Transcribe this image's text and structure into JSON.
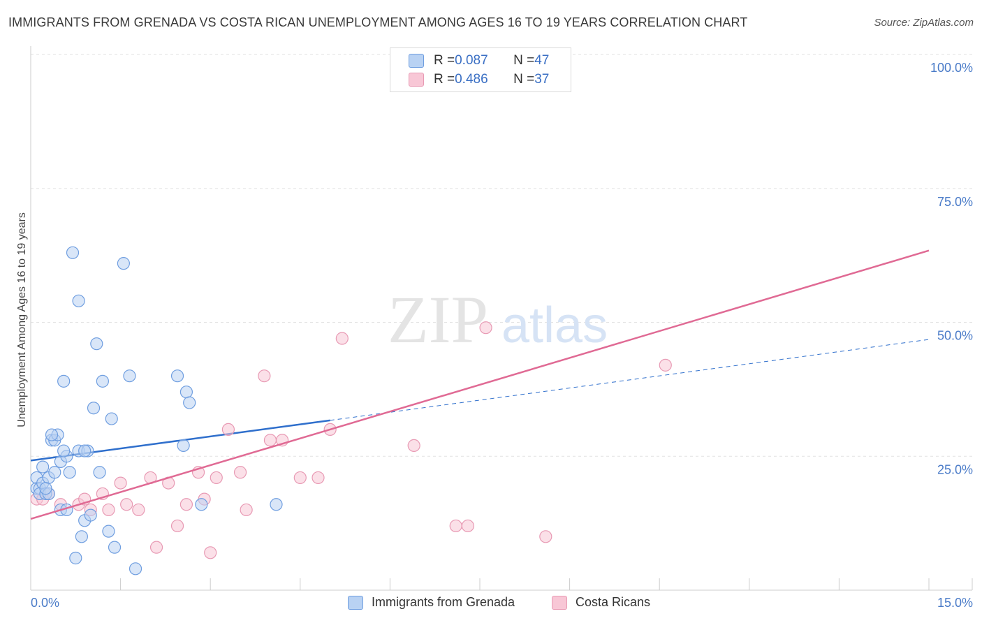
{
  "header": {
    "title": "IMMIGRANTS FROM GRENADA VS COSTA RICAN UNEMPLOYMENT AMONG AGES 16 TO 19 YEARS CORRELATION CHART",
    "source": "Source: ZipAtlas.com"
  },
  "watermark": {
    "zip": "ZIP",
    "atlas": "atlas"
  },
  "legend": {
    "series": [
      {
        "r_label": "R = ",
        "r_value": "0.087",
        "n_label": "N = ",
        "n_value": "47"
      },
      {
        "r_label": "R = ",
        "r_value": "0.486",
        "n_label": "N = ",
        "n_value": "37"
      }
    ]
  },
  "colors": {
    "blue_fill": "#b9d2f3",
    "blue_stroke": "#6f9ee0",
    "blue_line": "#2f6fcc",
    "pink_fill": "#f8c7d6",
    "pink_stroke": "#e89ab4",
    "pink_line": "#e06a94",
    "grid": "#e2e2e2",
    "axis": "#cccccc",
    "tick_text": "#4a7bc8"
  },
  "chart_data": {
    "type": "scatter",
    "title": "IMMIGRANTS FROM GRENADA VS COSTA RICAN UNEMPLOYMENT AMONG AGES 16 TO 19 YEARS CORRELATION CHART",
    "xlabel": "",
    "ylabel": "Unemployment Among Ages 16 to 19 years",
    "xlim": [
      0,
      15
    ],
    "ylim": [
      0,
      100
    ],
    "x_tick_labels": [
      "0.0%",
      "15.0%"
    ],
    "y_ticks": [
      25,
      50,
      75,
      100
    ],
    "y_tick_labels": [
      "25.0%",
      "50.0%",
      "75.0%",
      "100.0%"
    ],
    "series": [
      {
        "name": "Immigrants from Grenada",
        "color": "blue",
        "points": [
          [
            0.1,
            19
          ],
          [
            0.1,
            21
          ],
          [
            0.15,
            19
          ],
          [
            0.15,
            18
          ],
          [
            0.2,
            20
          ],
          [
            0.25,
            18
          ],
          [
            0.2,
            23
          ],
          [
            0.3,
            18
          ],
          [
            0.3,
            21
          ],
          [
            0.35,
            28
          ],
          [
            0.4,
            28
          ],
          [
            0.4,
            22
          ],
          [
            0.45,
            29
          ],
          [
            0.5,
            15
          ],
          [
            0.5,
            24
          ],
          [
            0.55,
            39
          ],
          [
            0.6,
            25
          ],
          [
            0.6,
            15
          ],
          [
            0.65,
            22
          ],
          [
            0.7,
            63
          ],
          [
            0.75,
            6
          ],
          [
            0.8,
            54
          ],
          [
            0.8,
            26
          ],
          [
            0.85,
            10
          ],
          [
            0.9,
            13
          ],
          [
            0.95,
            26
          ],
          [
            1.0,
            14
          ],
          [
            1.05,
            34
          ],
          [
            1.1,
            46
          ],
          [
            1.15,
            22
          ],
          [
            1.2,
            39
          ],
          [
            1.3,
            11
          ],
          [
            1.35,
            32
          ],
          [
            1.4,
            8
          ],
          [
            1.55,
            61
          ],
          [
            1.65,
            40
          ],
          [
            1.75,
            4
          ],
          [
            2.45,
            40
          ],
          [
            2.55,
            27
          ],
          [
            2.6,
            37
          ],
          [
            2.65,
            35
          ],
          [
            2.85,
            16
          ],
          [
            4.1,
            16
          ],
          [
            0.55,
            26
          ],
          [
            0.25,
            19
          ],
          [
            0.35,
            29
          ],
          [
            0.9,
            26
          ]
        ],
        "trend_solid": [
          [
            0,
            24.2
          ],
          [
            5.0,
            31.7
          ]
        ],
        "trend_dashed": [
          [
            5.0,
            31.7
          ],
          [
            15,
            46.8
          ]
        ]
      },
      {
        "name": "Costa Ricans",
        "color": "pink",
        "points": [
          [
            0.1,
            17
          ],
          [
            0.2,
            17
          ],
          [
            0.3,
            18
          ],
          [
            0.5,
            16
          ],
          [
            0.8,
            16
          ],
          [
            0.9,
            17
          ],
          [
            1.0,
            15
          ],
          [
            1.2,
            18
          ],
          [
            1.3,
            15
          ],
          [
            1.5,
            20
          ],
          [
            1.6,
            16
          ],
          [
            1.8,
            15
          ],
          [
            2.0,
            21
          ],
          [
            2.1,
            8
          ],
          [
            2.3,
            20
          ],
          [
            2.45,
            12
          ],
          [
            2.6,
            16
          ],
          [
            2.8,
            22
          ],
          [
            2.9,
            17
          ],
          [
            3.0,
            7
          ],
          [
            3.1,
            21
          ],
          [
            3.3,
            30
          ],
          [
            3.5,
            22
          ],
          [
            3.6,
            15
          ],
          [
            3.9,
            40
          ],
          [
            4.0,
            28
          ],
          [
            4.2,
            28
          ],
          [
            4.5,
            21
          ],
          [
            4.8,
            21
          ],
          [
            5.0,
            30
          ],
          [
            5.2,
            47
          ],
          [
            6.4,
            27
          ],
          [
            7.1,
            12
          ],
          [
            7.3,
            12
          ],
          [
            7.6,
            49
          ],
          [
            8.6,
            10
          ],
          [
            10.6,
            42
          ]
        ],
        "trend_solid": [
          [
            0,
            13.3
          ],
          [
            15,
            63.4
          ]
        ]
      }
    ]
  },
  "bottom_legend": {
    "grenada": "Immigrants from Grenada",
    "costa": "Costa Ricans"
  }
}
